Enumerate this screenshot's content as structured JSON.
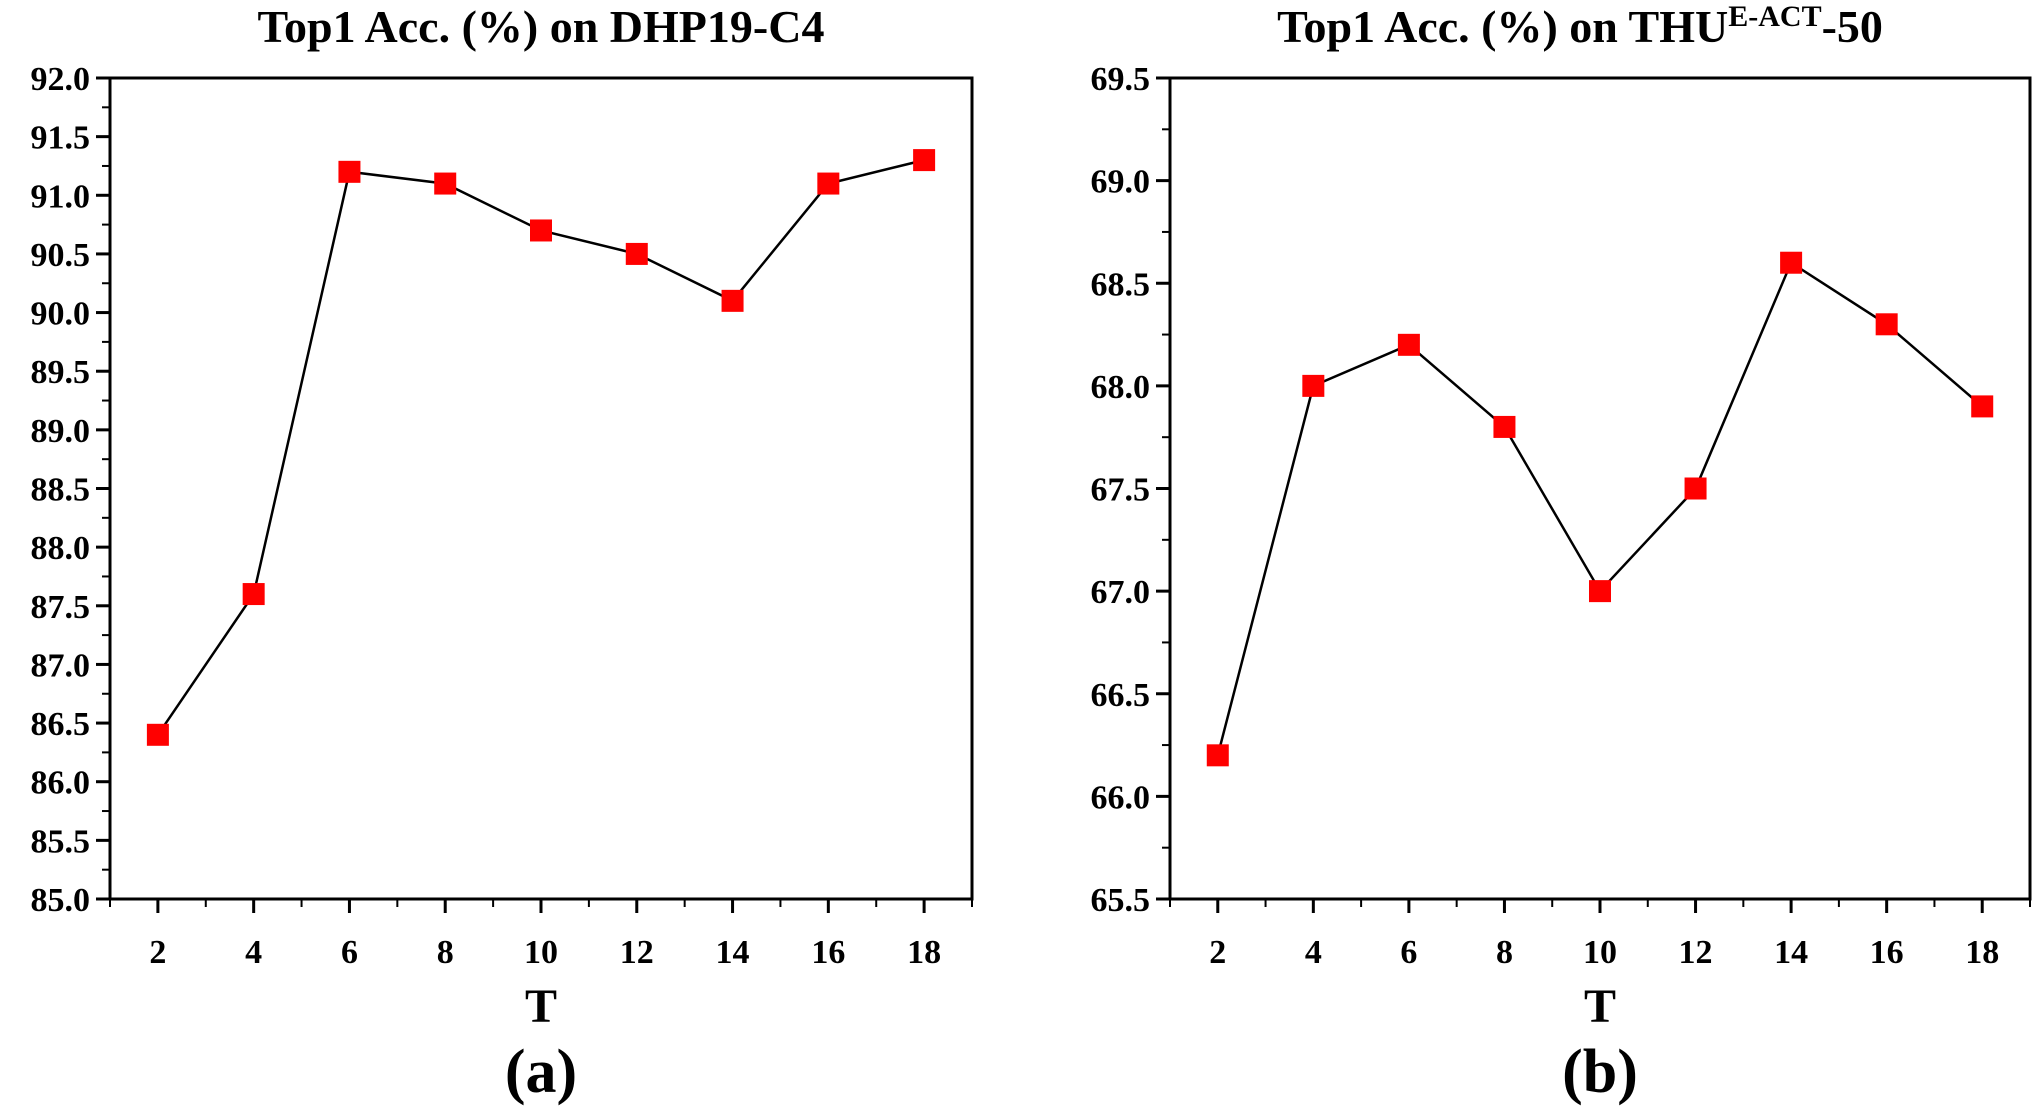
{
  "chart_data": [
    {
      "type": "line",
      "title": "Top1 Acc. (%) on DHP19-C4",
      "xlabel": "T",
      "ylabel": "",
      "caption": "(a)",
      "x": [
        2,
        4,
        6,
        8,
        10,
        12,
        14,
        16,
        18
      ],
      "xlim": [
        1,
        19
      ],
      "xticks": [
        "2",
        "4",
        "6",
        "8",
        "10",
        "12",
        "14",
        "16",
        "18"
      ],
      "ylim": [
        85.0,
        92.0
      ],
      "yticks": [
        "85.0",
        "85.5",
        "86.0",
        "86.5",
        "87.0",
        "87.5",
        "88.0",
        "88.5",
        "89.0",
        "89.5",
        "90.0",
        "90.5",
        "91.0",
        "91.5",
        "92.0"
      ],
      "series": [
        {
          "values": [
            86.4,
            87.6,
            91.2,
            91.1,
            90.7,
            90.5,
            90.1,
            91.1,
            91.3
          ],
          "line_color": "#000000",
          "marker": "square",
          "marker_color": "#ff0000"
        }
      ],
      "grid": false,
      "legend": "none"
    },
    {
      "type": "line",
      "title": "Top1 Acc. (%) on THU",
      "title_superscript": "E-ACT",
      "title_suffix": "-50",
      "xlabel": "T",
      "ylabel": "",
      "caption": "(b)",
      "x": [
        2,
        4,
        6,
        8,
        10,
        12,
        14,
        16,
        18
      ],
      "xlim": [
        1,
        19
      ],
      "xticks": [
        "2",
        "4",
        "6",
        "8",
        "10",
        "12",
        "14",
        "16",
        "18"
      ],
      "ylim": [
        65.5,
        69.5
      ],
      "yticks": [
        "65.5",
        "66.0",
        "66.5",
        "67.0",
        "67.5",
        "68.0",
        "68.5",
        "69.0",
        "69.5"
      ],
      "series": [
        {
          "values": [
            66.2,
            68.0,
            68.2,
            67.8,
            67.0,
            67.5,
            68.6,
            68.3,
            67.9
          ],
          "line_color": "#000000",
          "marker": "square",
          "marker_color": "#ff0000"
        }
      ],
      "grid": false,
      "legend": "none"
    }
  ]
}
